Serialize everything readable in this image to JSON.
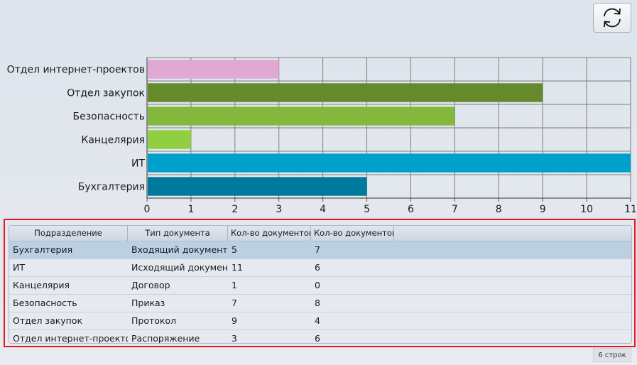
{
  "toolbar": {
    "refresh_icon": "refresh-icon"
  },
  "chart_data": {
    "type": "bar",
    "orientation": "horizontal",
    "categories": [
      "Отдел интернет-проектов",
      "Отдел закупок",
      "Безопасность",
      "Канцелярия",
      "ИТ",
      "Бухгалтерия"
    ],
    "values": [
      3,
      9,
      7,
      1,
      11,
      5
    ],
    "colors": [
      "#e0a8d4",
      "#648a2c",
      "#82b83c",
      "#8fcf40",
      "#00a0cc",
      "#007a9c"
    ],
    "xticks": [
      "0",
      "1",
      "2",
      "3",
      "4",
      "5",
      "6",
      "7",
      "8",
      "9",
      "10",
      "11"
    ],
    "xlim": [
      0,
      11
    ],
    "grid": true,
    "title": "",
    "xlabel": "",
    "ylabel": ""
  },
  "table": {
    "columns": [
      "Подразделение",
      "Тип документа",
      "Кол-во документов",
      "Кол-во документов"
    ],
    "rows": [
      [
        "Бухгалтерия",
        "Входящий документ",
        "5",
        "7"
      ],
      [
        "ИТ",
        "Исходящий документ",
        "11",
        "6"
      ],
      [
        "Канцелярия",
        "Договор",
        "1",
        "0"
      ],
      [
        "Безопасность",
        "Приказ",
        "7",
        "8"
      ],
      [
        "Отдел закупок",
        "Протокол",
        "9",
        "4"
      ],
      [
        "Отдел интернет-проектов",
        "Распоряжение",
        "3",
        "6"
      ]
    ],
    "selected_row": 0
  },
  "status": {
    "row_count": "6 строк"
  }
}
